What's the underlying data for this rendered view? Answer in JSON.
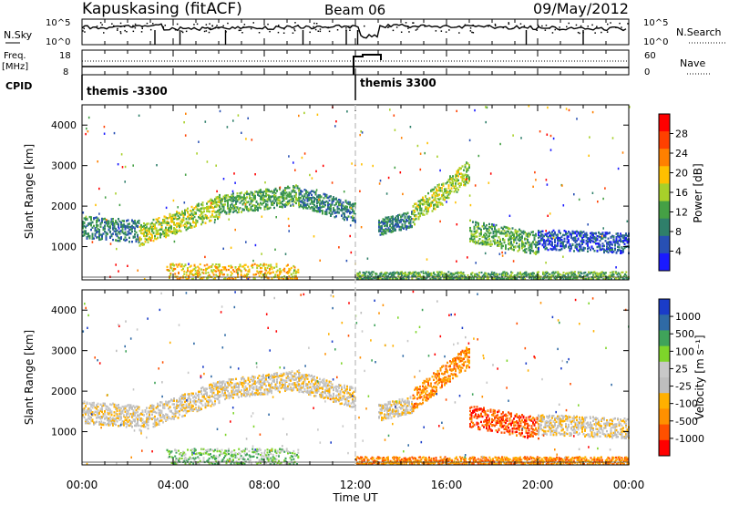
{
  "header": {
    "station": "Kapuskasing (fitACF)",
    "beam": "Beam 06",
    "date": "09/May/2012"
  },
  "top_panels": {
    "nsky_label": "N.Sky",
    "nsearch_label": "N.Search",
    "nsky_ticks": [
      "10^5",
      "10^0"
    ],
    "nsearch_ticks": [
      "10^5",
      "10^0"
    ],
    "freq_label": "Freq.",
    "freq_unit": "[MHz]",
    "freq_ticks": [
      "18",
      "8"
    ],
    "nave_label": "Nave",
    "nave_ticks": [
      "60",
      "0"
    ],
    "cpid_label": "CPID",
    "cpid_segments": [
      {
        "label": "themis -3300",
        "start_hour": 0
      },
      {
        "label": "themis 3300",
        "start_hour": 12
      }
    ]
  },
  "colors": {
    "power": [
      "#1a1aff",
      "#2850b4",
      "#2f7f6a",
      "#45a045",
      "#a8d02a",
      "#ffc000",
      "#ff8000",
      "#ff4000",
      "#ff0000"
    ],
    "velocity": [
      "#ff0000",
      "#ff5000",
      "#ff9000",
      "#ffb000",
      "#bebebe",
      "#c8c8c8",
      "#7ed52a",
      "#3fa35a",
      "#2f6aa5",
      "#1a3cc8"
    ],
    "ground": "#bebebe"
  },
  "chart_data": [
    {
      "type": "heatmap",
      "title": "Power",
      "xlabel": "",
      "ylabel": "Slant Range [km]",
      "xlim": [
        0,
        24
      ],
      "ylim": [
        180,
        4500
      ],
      "y_ticks": [
        "1000",
        "2000",
        "3000",
        "4000"
      ],
      "colorbar_label": "Power [dB]",
      "colorbar_ticks": [
        "4",
        "8",
        "12",
        "16",
        "20",
        "24",
        "28"
      ],
      "bands": [
        {
          "start": 0.0,
          "end": 2.5,
          "center0": 1500,
          "center1": 1400,
          "width": 420,
          "level": 2
        },
        {
          "start": 2.5,
          "end": 6.0,
          "center0": 1300,
          "center1": 2000,
          "width": 420,
          "level": 4
        },
        {
          "start": 6.0,
          "end": 9.5,
          "center0": 2050,
          "center1": 2300,
          "width": 380,
          "level": 3
        },
        {
          "start": 9.5,
          "end": 12.0,
          "center0": 2250,
          "center1": 1850,
          "width": 380,
          "level": 2
        },
        {
          "start": 13.0,
          "end": 14.5,
          "center0": 1500,
          "center1": 1700,
          "width": 320,
          "level": 2
        },
        {
          "start": 14.5,
          "end": 17.0,
          "center0": 1800,
          "center1": 2900,
          "width": 420,
          "level": 4
        },
        {
          "start": 17.0,
          "end": 20.0,
          "center0": 1400,
          "center1": 1100,
          "width": 420,
          "level": 3
        },
        {
          "start": 20.0,
          "end": 24.0,
          "center0": 1200,
          "center1": 1100,
          "width": 380,
          "level": 1
        }
      ],
      "ground": [
        {
          "start": 3.7,
          "end": 9.5,
          "range": [
            200,
            600
          ],
          "level": 5
        },
        {
          "start": 12.0,
          "end": 24.0,
          "range": [
            200,
            400
          ],
          "level": 3
        }
      ]
    },
    {
      "type": "heatmap",
      "title": "Velocity",
      "xlabel": "Time UT",
      "ylabel": "Slant Range [km]",
      "xlim": [
        0,
        24
      ],
      "ylim": [
        180,
        4500
      ],
      "x_ticks": [
        "00:00",
        "04:00",
        "08:00",
        "12:00",
        "16:00",
        "20:00",
        "00:00"
      ],
      "y_ticks": [
        "1000",
        "2000",
        "3000",
        "4000"
      ],
      "colorbar_label": "Velocity [m s⁻¹]",
      "colorbar_ticks": [
        "1000",
        "500",
        "100",
        "25",
        "-25",
        "-100",
        "-500",
        "-1000"
      ],
      "bands": [
        {
          "start": 0.0,
          "end": 2.5,
          "center0": 1500,
          "center1": 1400,
          "width": 420,
          "level": 4
        },
        {
          "start": 2.5,
          "end": 6.0,
          "center0": 1300,
          "center1": 2000,
          "width": 420,
          "level": 4
        },
        {
          "start": 6.0,
          "end": 9.5,
          "center0": 2050,
          "center1": 2300,
          "width": 380,
          "level": 4
        },
        {
          "start": 9.5,
          "end": 12.0,
          "center0": 2250,
          "center1": 1850,
          "width": 380,
          "level": 4
        },
        {
          "start": 13.0,
          "end": 14.5,
          "center0": 1500,
          "center1": 1700,
          "width": 320,
          "level": 4
        },
        {
          "start": 14.5,
          "end": 17.0,
          "center0": 1800,
          "center1": 2900,
          "width": 420,
          "level": 2
        },
        {
          "start": 17.0,
          "end": 20.0,
          "center0": 1400,
          "center1": 1100,
          "width": 420,
          "level": 1
        },
        {
          "start": 20.0,
          "end": 24.0,
          "center0": 1200,
          "center1": 1100,
          "width": 380,
          "level": 4
        }
      ],
      "ground": [
        {
          "start": 3.7,
          "end": 9.5,
          "range": [
            200,
            600
          ],
          "level": 6
        },
        {
          "start": 12.0,
          "end": 24.0,
          "range": [
            200,
            400
          ],
          "level": 2
        }
      ]
    }
  ]
}
